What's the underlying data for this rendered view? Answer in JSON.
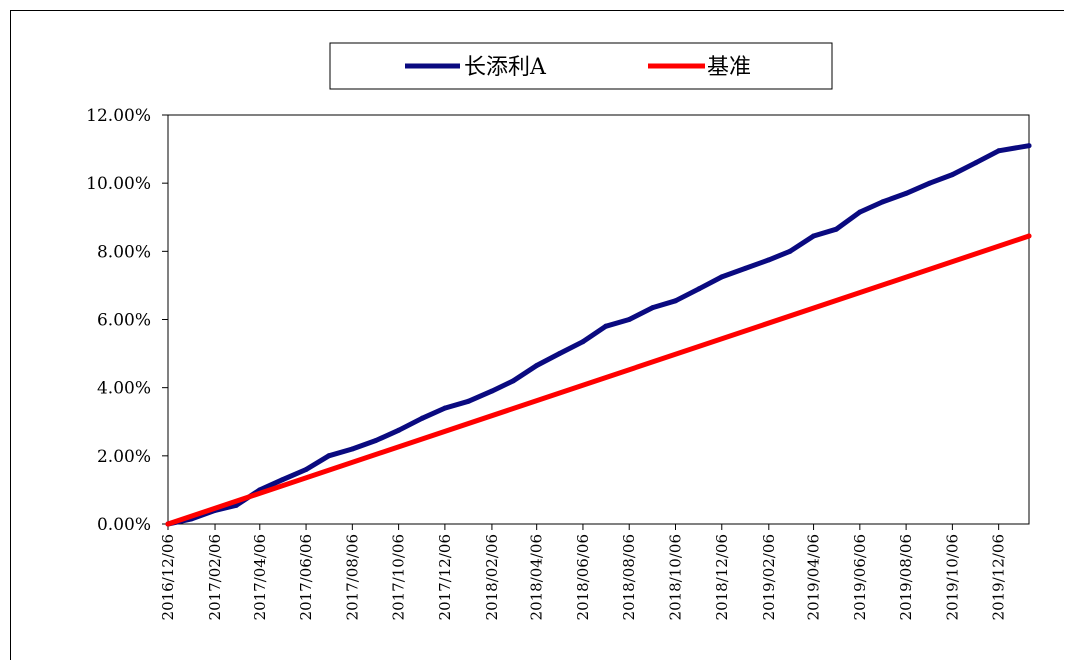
{
  "chart_data": {
    "type": "line",
    "title": "",
    "xlabel": "",
    "ylabel": "",
    "x_ticks": [
      "2016/12/06",
      "2017/02/06",
      "2017/04/06",
      "2017/06/06",
      "2017/08/06",
      "2017/10/06",
      "2017/12/06",
      "2018/02/06",
      "2018/04/06",
      "2018/06/06",
      "2018/08/06",
      "2018/10/06",
      "2018/12/06",
      "2019/02/06",
      "2019/04/06",
      "2019/06/06",
      "2019/08/06",
      "2019/10/06",
      "2019/12/06"
    ],
    "y_ticks": [
      "0.00%",
      "2.00%",
      "4.00%",
      "6.00%",
      "8.00%",
      "10.00%",
      "12.00%"
    ],
    "ylim": [
      0,
      12
    ],
    "xlim": [
      "2016/12/06",
      "2020/01/15"
    ],
    "legend_position": "top-center",
    "grid": false,
    "series": [
      {
        "name": "长添利A",
        "color": "#0a0a80",
        "points": [
          [
            "2016/12/06",
            0.0
          ],
          [
            "2017/01/06",
            0.15
          ],
          [
            "2017/02/06",
            0.4
          ],
          [
            "2017/03/06",
            0.55
          ],
          [
            "2017/04/06",
            1.0
          ],
          [
            "2017/05/06",
            1.3
          ],
          [
            "2017/06/06",
            1.6
          ],
          [
            "2017/07/06",
            2.0
          ],
          [
            "2017/08/06",
            2.2
          ],
          [
            "2017/09/06",
            2.45
          ],
          [
            "2017/10/06",
            2.75
          ],
          [
            "2017/11/06",
            3.1
          ],
          [
            "2017/12/06",
            3.4
          ],
          [
            "2018/01/06",
            3.6
          ],
          [
            "2018/02/06",
            3.9
          ],
          [
            "2018/03/06",
            4.2
          ],
          [
            "2018/04/06",
            4.65
          ],
          [
            "2018/05/06",
            5.0
          ],
          [
            "2018/06/06",
            5.35
          ],
          [
            "2018/07/06",
            5.8
          ],
          [
            "2018/08/06",
            6.0
          ],
          [
            "2018/09/06",
            6.35
          ],
          [
            "2018/10/06",
            6.55
          ],
          [
            "2018/11/06",
            6.9
          ],
          [
            "2018/12/06",
            7.25
          ],
          [
            "2019/01/06",
            7.5
          ],
          [
            "2019/02/06",
            7.75
          ],
          [
            "2019/03/06",
            8.0
          ],
          [
            "2019/04/06",
            8.45
          ],
          [
            "2019/05/06",
            8.65
          ],
          [
            "2019/06/06",
            9.15
          ],
          [
            "2019/07/06",
            9.45
          ],
          [
            "2019/08/06",
            9.7
          ],
          [
            "2019/09/06",
            10.0
          ],
          [
            "2019/10/06",
            10.25
          ],
          [
            "2019/11/06",
            10.6
          ],
          [
            "2019/12/06",
            10.95
          ],
          [
            "2020/01/15",
            11.1
          ]
        ]
      },
      {
        "name": "基准",
        "color": "#ff0000",
        "points": [
          [
            "2016/12/06",
            0.0
          ],
          [
            "2020/01/15",
            8.45
          ]
        ]
      }
    ]
  }
}
